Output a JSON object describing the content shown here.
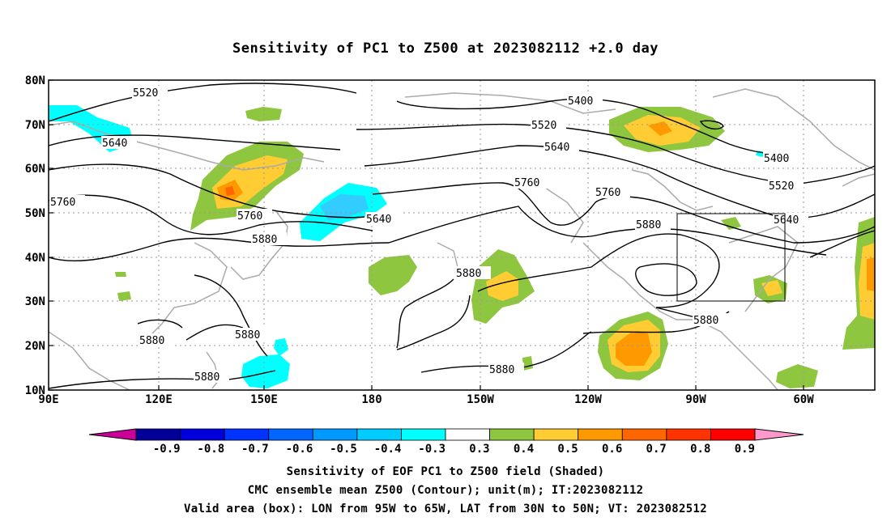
{
  "title": "Sensitivity of PC1 to Z500 at 2023082112 +2.0 day",
  "lat_labels": [
    "80N",
    "70N",
    "60N",
    "50N",
    "40N",
    "30N",
    "20N",
    "10N"
  ],
  "lon_labels": [
    "90E",
    "120E",
    "150E",
    "180",
    "150W",
    "120W",
    "90W",
    "60W"
  ],
  "contour_labels": [
    {
      "text": "5520"
    },
    {
      "text": "5640"
    },
    {
      "text": "5760"
    },
    {
      "text": "5760"
    },
    {
      "text": "5880"
    },
    {
      "text": "5400"
    },
    {
      "text": "5520"
    },
    {
      "text": "5640"
    },
    {
      "text": "5760"
    },
    {
      "text": "5640"
    },
    {
      "text": "5760"
    },
    {
      "text": "5880"
    },
    {
      "text": "5400"
    },
    {
      "text": "5520"
    },
    {
      "text": "5640"
    },
    {
      "text": "5880"
    },
    {
      "text": "5880"
    },
    {
      "text": "5880"
    },
    {
      "text": "5880"
    },
    {
      "text": "5880"
    },
    {
      "text": "5880"
    }
  ],
  "colorbar": {
    "ticks": [
      "-0.9",
      "-0.8",
      "-0.7",
      "-0.6",
      "-0.5",
      "-0.4",
      "-0.3",
      "0.3",
      "0.4",
      "0.5",
      "0.6",
      "0.7",
      "0.8",
      "0.9"
    ],
    "colors": [
      "#000099",
      "#0000dd",
      "#0033ff",
      "#0066ff",
      "#0099ff",
      "#00ccff",
      "#00ffff",
      "#ffffff",
      "#8fc63f",
      "#ffcc33",
      "#ff9900",
      "#ff6600",
      "#ff3300",
      "#ff0000"
    ],
    "left_arrow_color": "#cc0099",
    "right_arrow_color": "#ff99cc"
  },
  "box": {
    "lon_west": "95W",
    "lon_east": "65W",
    "lat_south": "30N",
    "lat_north": "50N"
  },
  "captions": {
    "line1": "Sensitivity of EOF PC1 to Z500 field (Shaded)",
    "line2": "CMC ensemble mean Z500 (Contour); unit(m); IT:2023082112",
    "line3": "Valid area (box): LON from 95W to 65W, LAT from 30N to 50N; VT: 2023082512"
  }
}
